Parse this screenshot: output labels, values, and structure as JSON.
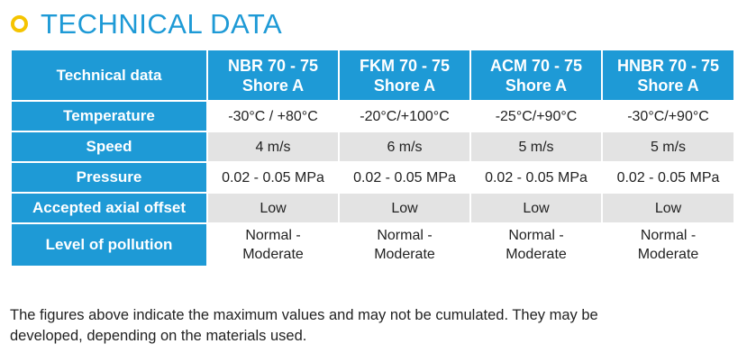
{
  "heading": "TECHNICAL DATA",
  "colors": {
    "accent_blue": "#1e9ad6",
    "bullet_yellow": "#f5c400",
    "row_grey": "#e3e3e3"
  },
  "table": {
    "corner": "Technical data",
    "columns": [
      [
        "NBR 70 - 75",
        "Shore A"
      ],
      [
        "FKM 70 - 75",
        "Shore A"
      ],
      [
        "ACM 70 - 75",
        "Shore A"
      ],
      [
        "HNBR 70 - 75",
        "Shore A"
      ]
    ],
    "rows": [
      {
        "label": "Temperature",
        "cells": [
          [
            "-30°C / +80°C"
          ],
          [
            "-20°C/+100°C"
          ],
          [
            "-25°C/+90°C"
          ],
          [
            "-30°C/+90°C"
          ]
        ]
      },
      {
        "label": "Speed",
        "cells": [
          [
            "4 m/s"
          ],
          [
            "6 m/s"
          ],
          [
            "5 m/s"
          ],
          [
            "5 m/s"
          ]
        ]
      },
      {
        "label": "Pressure",
        "cells": [
          [
            "0.02 - 0.05 MPa"
          ],
          [
            "0.02 - 0.05 MPa"
          ],
          [
            "0.02 - 0.05 MPa"
          ],
          [
            "0.02 - 0.05 MPa"
          ]
        ]
      },
      {
        "label": "Accepted axial offset",
        "cells": [
          [
            "Low"
          ],
          [
            "Low"
          ],
          [
            "Low"
          ],
          [
            "Low"
          ]
        ]
      },
      {
        "label": "Level of pollution",
        "cells": [
          [
            "Normal -",
            "Moderate"
          ],
          [
            "Normal -",
            "Moderate"
          ],
          [
            "Normal -",
            "Moderate"
          ],
          [
            "Normal -",
            "Moderate"
          ]
        ]
      }
    ]
  },
  "note": [
    "The figures above indicate the maximum values and may not be cumulated. They may be",
    "developed, depending on the materials used."
  ]
}
